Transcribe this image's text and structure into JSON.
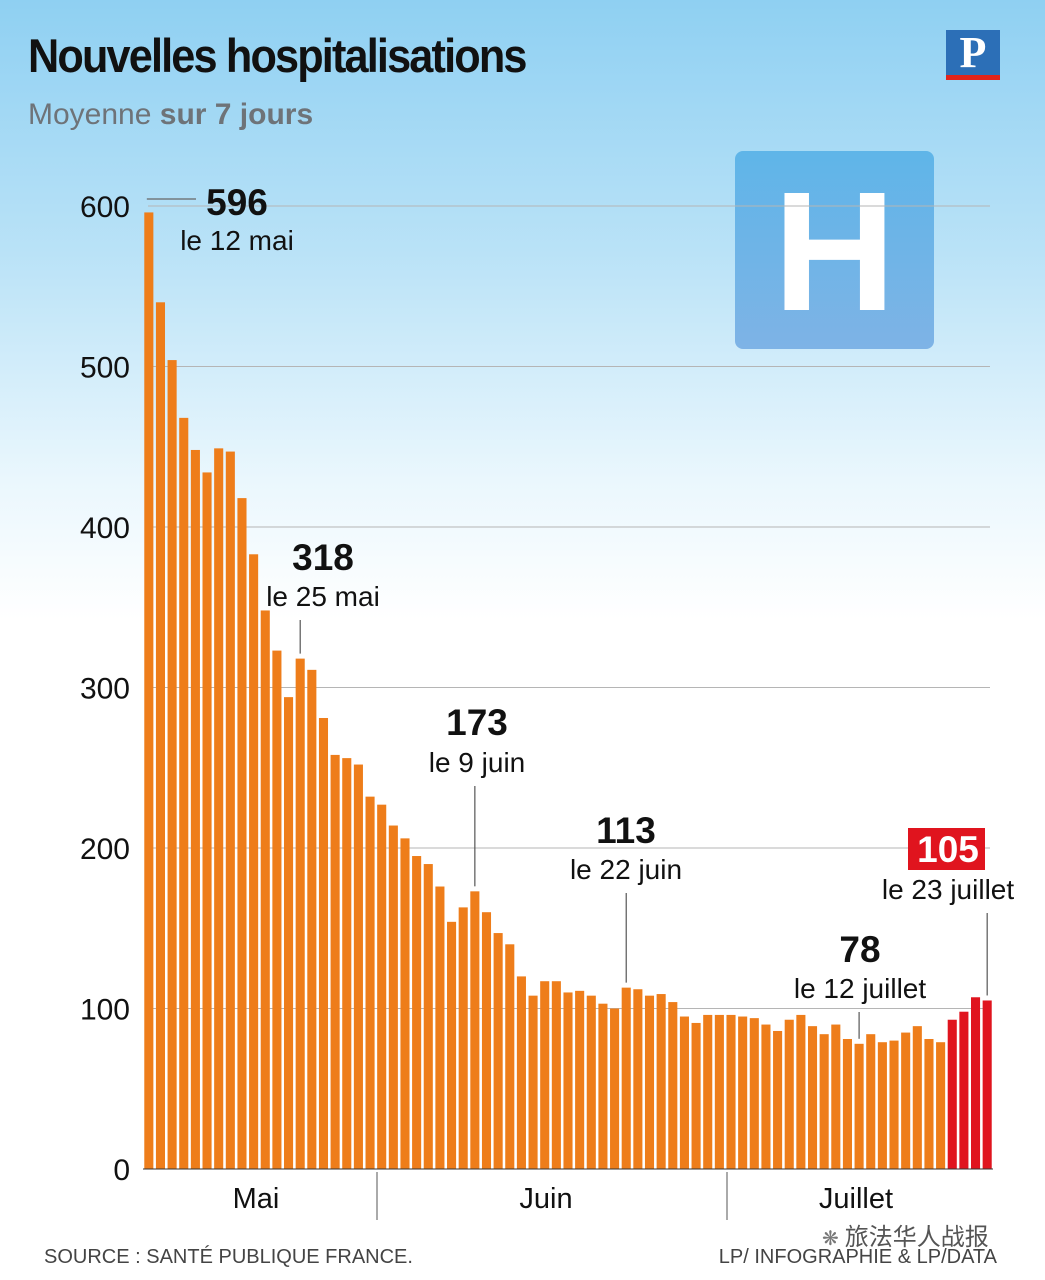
{
  "header": {
    "title": "Nouvelles hospitalisations",
    "subtitle_plain": "Moyenne",
    "subtitle_bold": "sur 7 jours",
    "logo_letter": "P"
  },
  "hospital_sign": {
    "letter": "H"
  },
  "footer": {
    "source": "SOURCE : SANTÉ PUBLIQUE FRANCE.",
    "credit": "LP/ INFOGRAPHIE & LP/DATA",
    "watermark": "旅法华人战报"
  },
  "colors": {
    "bar": "#ee7d1a",
    "highlight": "#e0141e",
    "grid": "#b5b5b5",
    "text": "#111111"
  },
  "chart_data": {
    "type": "bar",
    "title": "Nouvelles hospitalisations",
    "subtitle": "Moyenne sur 7 jours",
    "ylim": [
      0,
      600
    ],
    "yticks": [
      0,
      100,
      200,
      300,
      400,
      500,
      600
    ],
    "grid": true,
    "months": [
      "Mai",
      "Juin",
      "Juillet"
    ],
    "values": [
      596,
      540,
      504,
      468,
      448,
      434,
      449,
      447,
      418,
      383,
      348,
      323,
      294,
      318,
      311,
      281,
      258,
      256,
      252,
      232,
      227,
      214,
      206,
      195,
      190,
      176,
      154,
      163,
      173,
      160,
      147,
      140,
      120,
      108,
      117,
      117,
      110,
      111,
      108,
      103,
      100,
      113,
      112,
      108,
      109,
      104,
      95,
      91,
      96,
      96,
      96,
      95,
      94,
      90,
      86,
      93,
      96,
      89,
      84,
      90,
      81,
      78,
      84,
      79,
      80,
      85,
      89,
      81,
      79,
      93,
      98,
      107,
      105
    ],
    "highlight_from_index": 69,
    "annotations": [
      {
        "index": 0,
        "value": "596",
        "date": "le 12 mai"
      },
      {
        "index": 13,
        "value": "318",
        "date": "le 25 mai"
      },
      {
        "index": 28,
        "value": "173",
        "date": "le 9 juin"
      },
      {
        "index": 41,
        "value": "113",
        "date": "le 22 juin"
      },
      {
        "index": 61,
        "value": "78",
        "date": "le 12 juillet"
      },
      {
        "index": 72,
        "value": "105",
        "date": "le 23 juillet",
        "highlight": true
      }
    ]
  }
}
